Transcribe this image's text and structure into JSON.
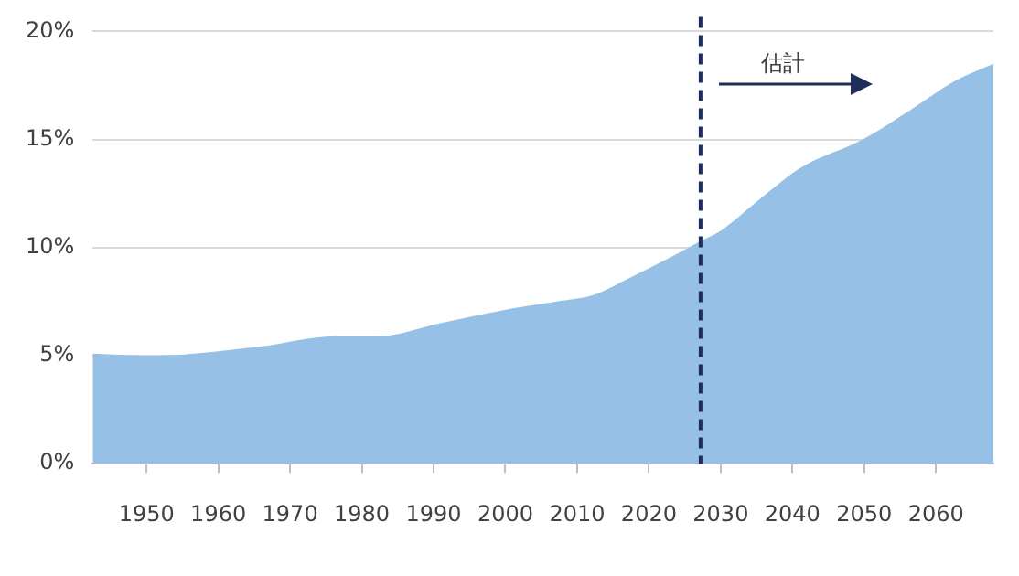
{
  "chart_data": {
    "type": "area",
    "x": [
      1942.5,
      1951,
      1965.3,
      1976.4,
      1982.4,
      1990.9,
      2001.2,
      2007,
      2012.2,
      2017.3,
      2023.3,
      2027.2,
      2030.1,
      2035.3,
      2041.2,
      2049.8,
      2056.6,
      2062.6,
      2068
    ],
    "values": [
      5.1,
      5.0,
      5.4,
      5.9,
      5.9,
      6.5,
      7.2,
      7.5,
      7.8,
      8.6,
      9.6,
      10.3,
      10.8,
      12.2,
      13.7,
      15.0,
      16.4,
      17.7,
      18.5
    ],
    "color": "#97c0e6",
    "xlim": [
      1942.5,
      2068
    ],
    "xticks": [
      1950,
      1960,
      1970,
      1980,
      1990,
      2000,
      2010,
      2020,
      2030,
      2040,
      2050,
      2060
    ],
    "ylim": [
      0,
      20
    ],
    "yticks": [
      {
        "value": 0,
        "label": "0%"
      },
      {
        "value": 5,
        "label": "5%"
      },
      {
        "value": 10,
        "label": "10%"
      },
      {
        "value": 15,
        "label": "15%"
      },
      {
        "value": 20,
        "label": "20%"
      }
    ],
    "grid": "y",
    "legend": false,
    "ref_lines": [
      {
        "axis": "x",
        "value": 2027.2,
        "color": "#1f2d5c",
        "line_style": "dashed"
      }
    ],
    "annotations": [
      "估計"
    ]
  }
}
